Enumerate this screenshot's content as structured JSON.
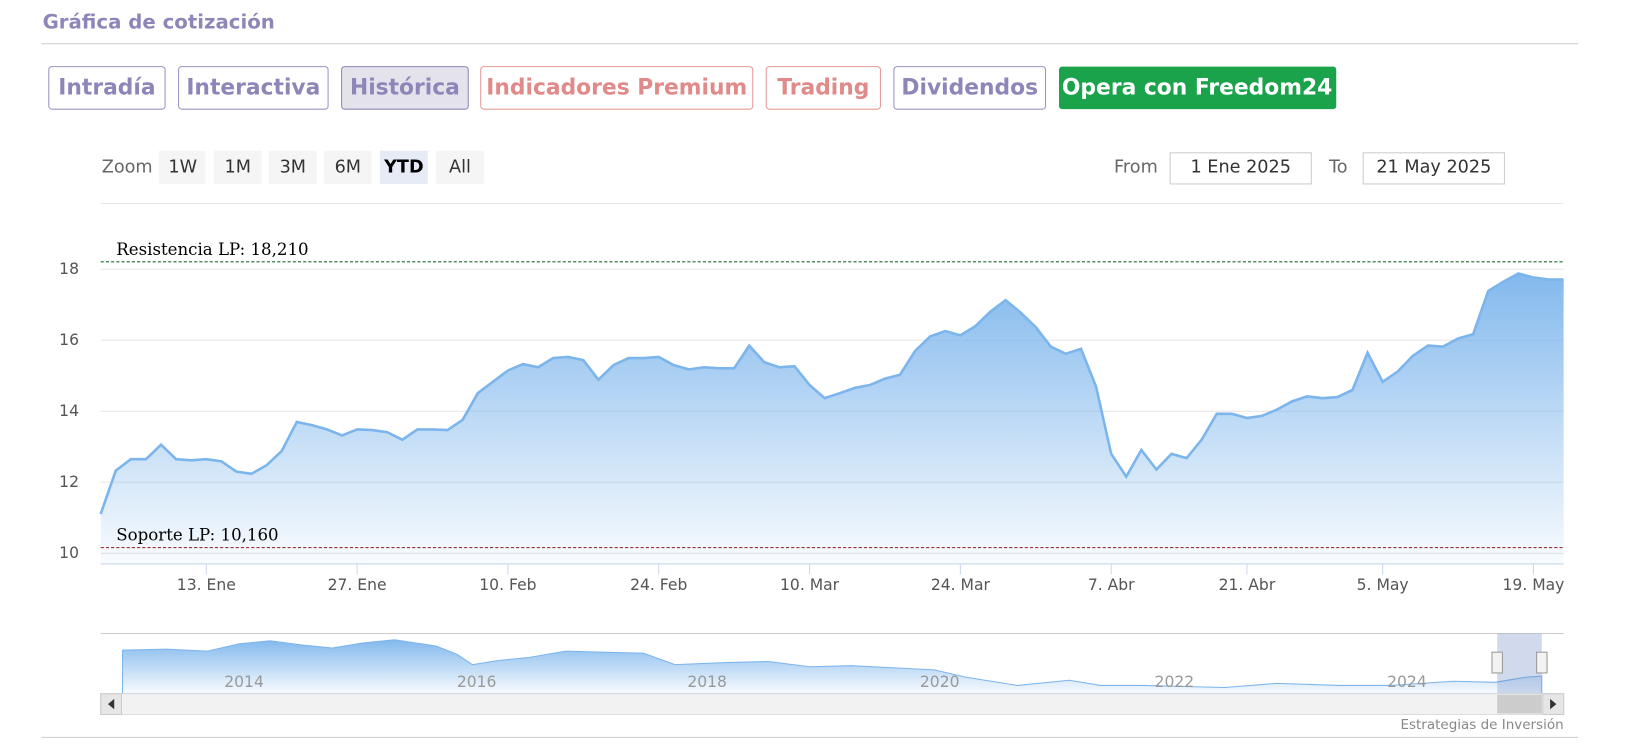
{
  "page": {
    "title": "Gráfica de cotización",
    "tabs": [
      "Intradía",
      "Interactiva",
      "Histórica",
      "Indicadores Premium",
      "Trading",
      "Dividendos",
      "Opera con Freedom24"
    ],
    "zoom_label": "Zoom",
    "zoom_buttons": [
      "1W",
      "1M",
      "3M",
      "6M",
      "YTD",
      "All"
    ],
    "from_label": "From",
    "from_value": "1 Ene 2025",
    "to_label": "To",
    "to_value": "21 May 2025",
    "navigator_labels": [
      "2014",
      "2016",
      "2018",
      "2020",
      "2022",
      "2024"
    ],
    "credit": "Estrategias de Inversión"
  },
  "chart_data": {
    "type": "area",
    "color": "#7cb5ec",
    "x": [
      "2025-01-02",
      "2025-01-03",
      "2025-01-06",
      "2025-01-07",
      "2025-01-08",
      "2025-01-09",
      "2025-01-10",
      "2025-01-13",
      "2025-01-14",
      "2025-01-15",
      "2025-01-16",
      "2025-01-17",
      "2025-01-20",
      "2025-01-21",
      "2025-01-22",
      "2025-01-23",
      "2025-01-24",
      "2025-01-27",
      "2025-01-28",
      "2025-01-29",
      "2025-01-30",
      "2025-01-31",
      "2025-02-03",
      "2025-02-04",
      "2025-02-05",
      "2025-02-06",
      "2025-02-07",
      "2025-02-10",
      "2025-02-11",
      "2025-02-12",
      "2025-02-13",
      "2025-02-14",
      "2025-02-17",
      "2025-02-18",
      "2025-02-19",
      "2025-02-20",
      "2025-02-21",
      "2025-02-24",
      "2025-02-25",
      "2025-02-26",
      "2025-02-27",
      "2025-02-28",
      "2025-03-03",
      "2025-03-04",
      "2025-03-05",
      "2025-03-06",
      "2025-03-07",
      "2025-03-10",
      "2025-03-11",
      "2025-03-12",
      "2025-03-13",
      "2025-03-14",
      "2025-03-17",
      "2025-03-18",
      "2025-03-19",
      "2025-03-20",
      "2025-03-21",
      "2025-03-24",
      "2025-03-25",
      "2025-03-26",
      "2025-03-27",
      "2025-03-28",
      "2025-03-31",
      "2025-04-01",
      "2025-04-02",
      "2025-04-03",
      "2025-04-04",
      "2025-04-07",
      "2025-04-08",
      "2025-04-09",
      "2025-04-10",
      "2025-04-11",
      "2025-04-14",
      "2025-04-15",
      "2025-04-16",
      "2025-04-17",
      "2025-04-21",
      "2025-04-22",
      "2025-04-23",
      "2025-04-24",
      "2025-04-25",
      "2025-04-28",
      "2025-04-29",
      "2025-04-30",
      "2025-05-02",
      "2025-05-05",
      "2025-05-06",
      "2025-05-07",
      "2025-05-08",
      "2025-05-09",
      "2025-05-12",
      "2025-05-13",
      "2025-05-14",
      "2025-05-15",
      "2025-05-16",
      "2025-05-19",
      "2025-05-20",
      "2025-05-21"
    ],
    "values": [
      11.11,
      12.33,
      12.65,
      12.65,
      13.06,
      12.65,
      12.62,
      12.65,
      12.59,
      12.3,
      12.24,
      12.48,
      12.88,
      13.7,
      13.61,
      13.49,
      13.32,
      13.49,
      13.47,
      13.41,
      13.2,
      13.49,
      13.49,
      13.47,
      13.76,
      14.51,
      14.83,
      15.15,
      15.33,
      15.24,
      15.5,
      15.53,
      15.44,
      14.89,
      15.3,
      15.5,
      15.5,
      15.53,
      15.3,
      15.18,
      15.24,
      15.21,
      15.21,
      15.85,
      15.38,
      15.24,
      15.27,
      14.74,
      14.37,
      14.51,
      14.66,
      14.74,
      14.92,
      15.03,
      15.7,
      16.11,
      16.26,
      16.14,
      16.4,
      16.81,
      17.13,
      16.78,
      16.37,
      15.82,
      15.62,
      15.76,
      14.69,
      12.8,
      12.16,
      12.91,
      12.36,
      12.8,
      12.68,
      13.2,
      13.93,
      13.93,
      13.81,
      13.87,
      14.05,
      14.28,
      14.42,
      14.37,
      14.4,
      14.6,
      15.65,
      14.83,
      15.12,
      15.56,
      15.85,
      15.82,
      16.05,
      16.17,
      17.39,
      17.65,
      17.88,
      17.77,
      17.71,
      17.71
    ],
    "ylim": [
      9.7,
      19
    ],
    "yticks": [
      10,
      12,
      14,
      16,
      18
    ],
    "grid": true,
    "xticks": [
      {
        "value": "2025-01-13",
        "label": "13. Ene"
      },
      {
        "value": "2025-01-27",
        "label": "27. Ene"
      },
      {
        "value": "2025-02-10",
        "label": "10. Feb"
      },
      {
        "value": "2025-02-24",
        "label": "24. Feb"
      },
      {
        "value": "2025-03-10",
        "label": "10. Mar"
      },
      {
        "value": "2025-03-24",
        "label": "24. Mar"
      },
      {
        "value": "2025-04-07",
        "label": "7. Abr"
      },
      {
        "value": "2025-04-21",
        "label": "21. Abr"
      },
      {
        "value": "2025-05-05",
        "label": "5. May"
      },
      {
        "value": "2025-05-19",
        "label": "19. May"
      }
    ],
    "annotations": [
      {
        "label": "Resistencia LP: 18,210",
        "value": 18.21,
        "color": "#1e6b2e"
      },
      {
        "label": "Soporte LP: 10,160",
        "value": 10.16,
        "color": "#8b1a1a"
      }
    ]
  }
}
